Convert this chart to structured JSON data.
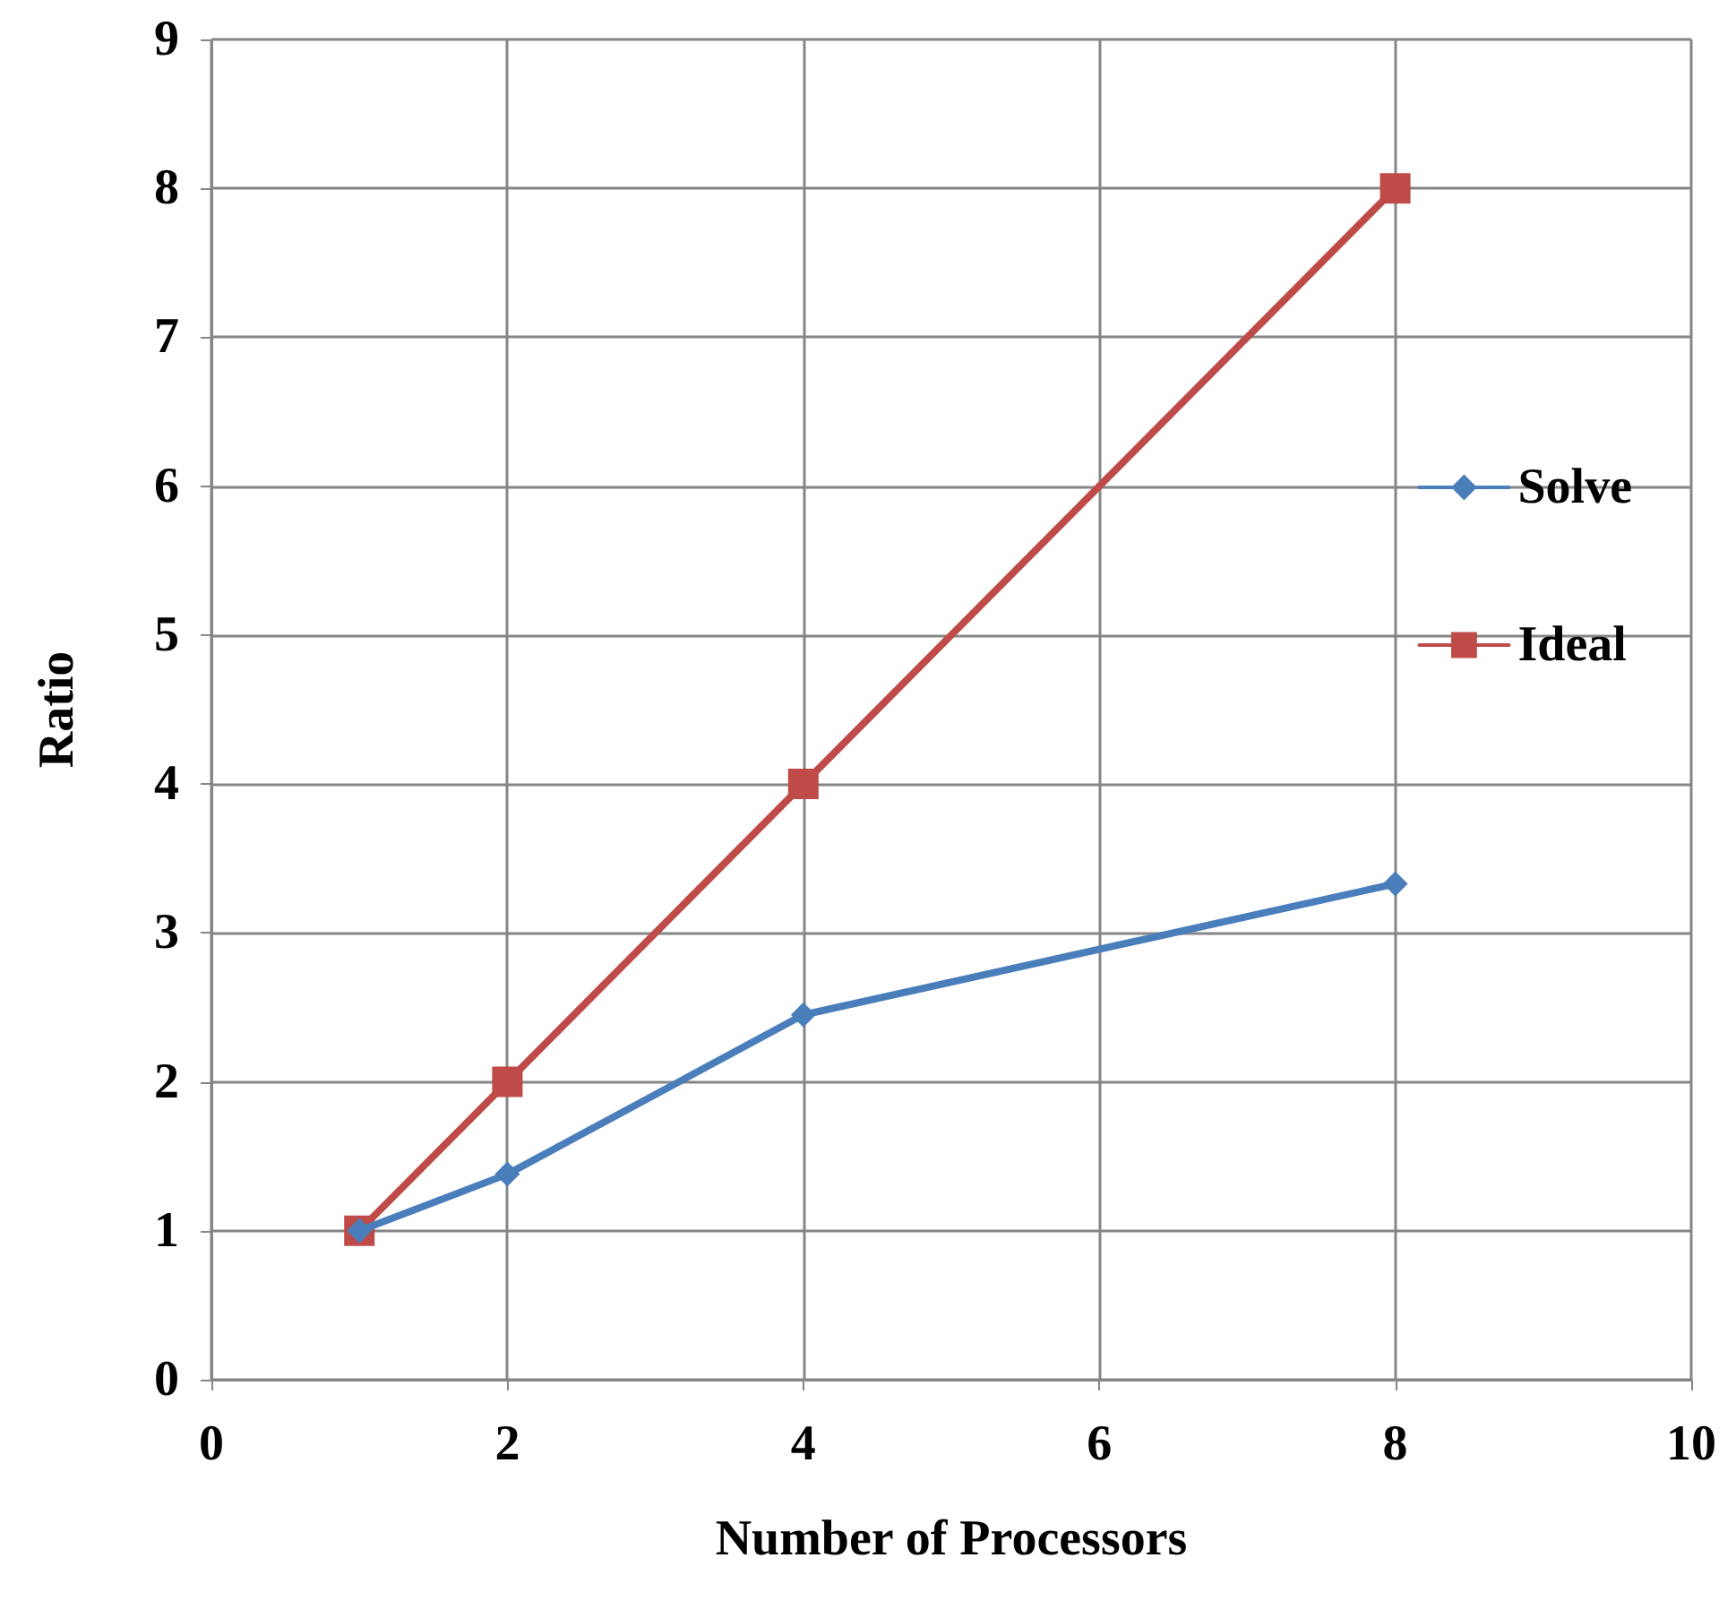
{
  "chart_data": {
    "type": "line",
    "xlabel": "Number of Processors",
    "ylabel": "Ratio",
    "x": [
      1,
      2,
      4,
      8
    ],
    "series": [
      {
        "name": "Solve",
        "color": "#4a7ebb",
        "marker": "diamond",
        "values": [
          1,
          1.38,
          2.45,
          3.33
        ]
      },
      {
        "name": "Ideal",
        "color": "#be4b48",
        "marker": "square",
        "values": [
          1,
          2,
          4,
          8
        ]
      }
    ],
    "xlim": [
      0,
      10
    ],
    "xticks": [
      0,
      2,
      4,
      6,
      8,
      10
    ],
    "ylim": [
      0,
      9
    ],
    "yticks": [
      0,
      1,
      2,
      3,
      4,
      5,
      6,
      7,
      8,
      9
    ],
    "grid": true,
    "legend": "right"
  }
}
